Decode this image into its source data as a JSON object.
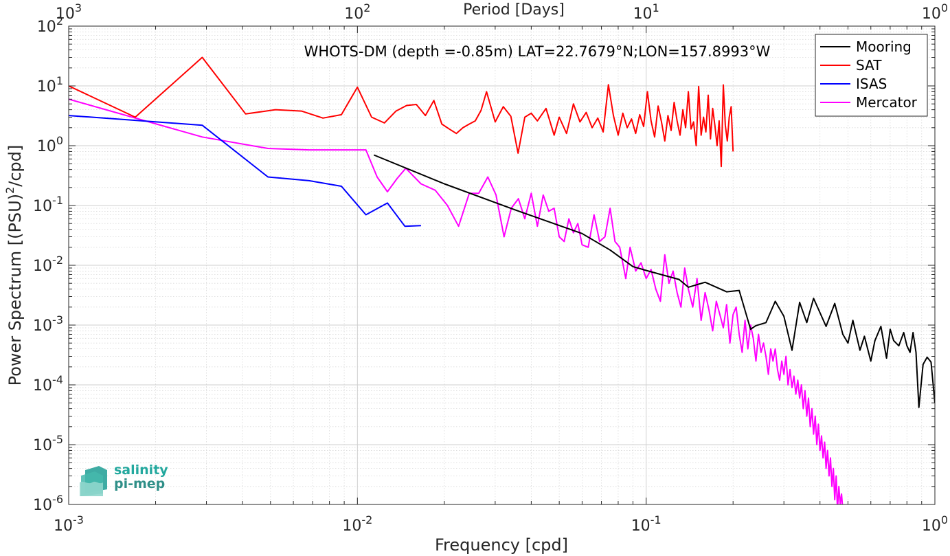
{
  "chart_data": {
    "type": "line",
    "title": "WHOTS-DM (depth =-0.85m) LAT=22.7679°N;LON=157.8993°W",
    "xlabel": "Frequency [cpd]",
    "ylabel_main": "Power Spectrum [(PSU)",
    "ylabel_sup": "2",
    "ylabel_tail": "/cpd]",
    "top_xlabel": "Period [Days]",
    "x_scale": "log",
    "y_scale": "log",
    "xlim": [
      0.001,
      1
    ],
    "ylim": [
      1e-06,
      100
    ],
    "grid": true,
    "legend_position": "top-right",
    "x_ticks": [
      {
        "value": 0.001,
        "base": "10",
        "exp": "-3"
      },
      {
        "value": 0.01,
        "base": "10",
        "exp": "-2"
      },
      {
        "value": 0.1,
        "base": "10",
        "exp": "-1"
      },
      {
        "value": 1,
        "base": "10",
        "exp": "0"
      }
    ],
    "top_ticks": [
      {
        "value": 0.001,
        "base": "10",
        "exp": "3"
      },
      {
        "value": 0.01,
        "base": "10",
        "exp": "2"
      },
      {
        "value": 0.1,
        "base": "10",
        "exp": "1"
      },
      {
        "value": 1,
        "base": "10",
        "exp": "0"
      }
    ],
    "y_ticks": [
      {
        "value": 100,
        "base": "10",
        "exp": "2"
      },
      {
        "value": 10,
        "base": "10",
        "exp": "1"
      },
      {
        "value": 1,
        "base": "10",
        "exp": "0"
      },
      {
        "value": 0.1,
        "base": "10",
        "exp": "-1"
      },
      {
        "value": 0.01,
        "base": "10",
        "exp": "-2"
      },
      {
        "value": 0.001,
        "base": "10",
        "exp": "-3"
      },
      {
        "value": 0.0001,
        "base": "10",
        "exp": "-4"
      },
      {
        "value": 1e-05,
        "base": "10",
        "exp": "-5"
      },
      {
        "value": 1e-06,
        "base": "10",
        "exp": "-6"
      }
    ],
    "series": [
      {
        "name": "Mooring",
        "color": "#000000",
        "x": [
          0.0114,
          0.02,
          0.035,
          0.06,
          0.075,
          0.09,
          0.1,
          0.13,
          0.14,
          0.16,
          0.19,
          0.21,
          0.23,
          0.24,
          0.26,
          0.28,
          0.3,
          0.32,
          0.34,
          0.36,
          0.38,
          0.42,
          0.45,
          0.48,
          0.5,
          0.52,
          0.55,
          0.57,
          0.6,
          0.62,
          0.65,
          0.68,
          0.7,
          0.72,
          0.75,
          0.78,
          0.8,
          0.82,
          0.84,
          0.86,
          0.88,
          0.91,
          0.94,
          0.97,
          1.0
        ],
        "y": [
          0.7,
          0.23,
          0.085,
          0.034,
          0.018,
          0.0095,
          0.0082,
          0.0058,
          0.0043,
          0.0052,
          0.0036,
          0.0038,
          0.00085,
          0.00098,
          0.0011,
          0.0025,
          0.0014,
          0.00038,
          0.0024,
          0.0011,
          0.0028,
          0.00095,
          0.0023,
          0.0007,
          0.0005,
          0.0012,
          0.00038,
          0.00065,
          0.00025,
          0.00055,
          0.00095,
          0.00028,
          0.00085,
          0.00055,
          0.00045,
          0.00075,
          0.00045,
          0.00035,
          0.00075,
          0.00035,
          4.2e-05,
          0.00022,
          0.00029,
          0.00024,
          5e-05
        ]
      },
      {
        "name": "SAT",
        "color": "#ff0000",
        "x": [
          0.001,
          0.0017,
          0.0029,
          0.0041,
          0.0052,
          0.0064,
          0.0076,
          0.0088,
          0.01,
          0.0112,
          0.0124,
          0.0136,
          0.0148,
          0.016,
          0.0172,
          0.0184,
          0.0196,
          0.0208,
          0.022,
          0.0232,
          0.0244,
          0.0256,
          0.0268,
          0.028,
          0.03,
          0.032,
          0.034,
          0.036,
          0.038,
          0.04,
          0.042,
          0.045,
          0.048,
          0.05,
          0.053,
          0.056,
          0.059,
          0.062,
          0.065,
          0.068,
          0.071,
          0.074,
          0.077,
          0.08,
          0.083,
          0.086,
          0.089,
          0.092,
          0.095,
          0.098,
          0.101,
          0.104,
          0.107,
          0.11,
          0.113,
          0.116,
          0.119,
          0.122,
          0.125,
          0.128,
          0.131,
          0.134,
          0.137,
          0.14,
          0.143,
          0.146,
          0.149,
          0.152,
          0.155,
          0.158,
          0.161,
          0.164,
          0.167,
          0.17,
          0.173,
          0.176,
          0.179,
          0.182,
          0.185,
          0.188,
          0.191,
          0.194,
          0.197,
          0.2
        ],
        "y": [
          10,
          3.0,
          30,
          3.4,
          4.0,
          3.8,
          2.9,
          3.3,
          9.5,
          3.0,
          2.4,
          3.8,
          4.7,
          4.9,
          3.2,
          5.7,
          2.3,
          1.9,
          1.6,
          2.0,
          2.3,
          2.6,
          3.9,
          8.0,
          2.5,
          4.5,
          3.1,
          0.75,
          3.0,
          3.5,
          2.6,
          4.2,
          1.5,
          3.0,
          1.6,
          5.0,
          2.5,
          3.6,
          2.0,
          2.9,
          1.7,
          10.5,
          3.2,
          1.5,
          3.5,
          2.0,
          2.8,
          1.6,
          3.3,
          2.1,
          8.0,
          2.6,
          1.4,
          4.6,
          2.5,
          1.2,
          3.2,
          1.8,
          5.3,
          2.6,
          1.5,
          4.0,
          2.0,
          8.0,
          1.9,
          2.5,
          1.0,
          9.8,
          1.5,
          3.0,
          1.7,
          7.0,
          1.3,
          4.2,
          2.2,
          1.0,
          2.6,
          0.45,
          10.4,
          2.2,
          1.2,
          3.0,
          4.5,
          0.8
        ]
      },
      {
        "name": "ISAS",
        "color": "#0000ff",
        "x": [
          0.001,
          0.0029,
          0.0049,
          0.0068,
          0.0088,
          0.0107,
          0.0127,
          0.0146,
          0.0166
        ],
        "y": [
          3.2,
          2.2,
          0.3,
          0.26,
          0.21,
          0.07,
          0.11,
          0.045,
          0.046
        ]
      },
      {
        "name": "Mercator",
        "color": "#ff00ff",
        "x": [
          0.001,
          0.0029,
          0.0049,
          0.0068,
          0.0088,
          0.0107,
          0.0117,
          0.0127,
          0.0137,
          0.0147,
          0.0166,
          0.0186,
          0.0205,
          0.0224,
          0.0244,
          0.0263,
          0.0283,
          0.0302,
          0.0322,
          0.0341,
          0.0361,
          0.038,
          0.04,
          0.042,
          0.044,
          0.046,
          0.048,
          0.05,
          0.052,
          0.054,
          0.056,
          0.058,
          0.06,
          0.063,
          0.066,
          0.069,
          0.072,
          0.075,
          0.078,
          0.081,
          0.085,
          0.088,
          0.092,
          0.096,
          0.1,
          0.104,
          0.108,
          0.112,
          0.116,
          0.12,
          0.124,
          0.128,
          0.132,
          0.136,
          0.14,
          0.145,
          0.15,
          0.155,
          0.16,
          0.165,
          0.17,
          0.175,
          0.18,
          0.185,
          0.19,
          0.195,
          0.2,
          0.205,
          0.21,
          0.215,
          0.22,
          0.225,
          0.23,
          0.235,
          0.24,
          0.245,
          0.25,
          0.255,
          0.26,
          0.265,
          0.27,
          0.275,
          0.28,
          0.285,
          0.29,
          0.295,
          0.3,
          0.305,
          0.31,
          0.315,
          0.32,
          0.325,
          0.33,
          0.335,
          0.34,
          0.345,
          0.35,
          0.355,
          0.36,
          0.365,
          0.37,
          0.375,
          0.38,
          0.385,
          0.39,
          0.395,
          0.4,
          0.405,
          0.41,
          0.415,
          0.42,
          0.425,
          0.43,
          0.435,
          0.44,
          0.445,
          0.45,
          0.455,
          0.46,
          0.465,
          0.47,
          0.475,
          0.48
        ],
        "y": [
          6.0,
          1.4,
          0.9,
          0.85,
          0.85,
          0.85,
          0.3,
          0.17,
          0.28,
          0.42,
          0.23,
          0.18,
          0.1,
          0.045,
          0.16,
          0.16,
          0.3,
          0.15,
          0.03,
          0.09,
          0.13,
          0.06,
          0.16,
          0.045,
          0.15,
          0.08,
          0.09,
          0.03,
          0.025,
          0.06,
          0.035,
          0.05,
          0.022,
          0.02,
          0.07,
          0.025,
          0.03,
          0.09,
          0.025,
          0.02,
          0.006,
          0.02,
          0.008,
          0.011,
          0.006,
          0.0085,
          0.004,
          0.0025,
          0.015,
          0.005,
          0.008,
          0.0035,
          0.002,
          0.009,
          0.004,
          0.002,
          0.006,
          0.0012,
          0.0035,
          0.0018,
          0.0008,
          0.0025,
          0.0015,
          0.0009,
          0.0022,
          0.0005,
          0.0015,
          0.002,
          0.0007,
          0.00035,
          0.0012,
          0.0004,
          0.001,
          0.0006,
          0.00025,
          0.0007,
          0.00035,
          0.0005,
          0.0003,
          0.00015,
          0.0004,
          0.00025,
          0.0004,
          0.00018,
          0.00012,
          0.00025,
          0.00015,
          0.0003,
          0.0001,
          0.00018,
          9e-05,
          0.00014,
          7e-05,
          0.00012,
          6e-05,
          0.0001,
          4e-05,
          8e-05,
          3e-05,
          6e-05,
          2e-05,
          4e-05,
          1.5e-05,
          3e-05,
          1e-05,
          2.2e-05,
          8e-06,
          1.4e-05,
          6e-06,
          1.1e-05,
          4e-06,
          8e-06,
          3e-06,
          6e-06,
          2e-06,
          4e-06,
          1.2e-06,
          3e-06,
          8e-07,
          2e-06,
          1e-06,
          1.5e-06,
          8e-07
        ]
      }
    ]
  },
  "logo": {
    "line1": "salinity",
    "line2": "pi-mep"
  }
}
